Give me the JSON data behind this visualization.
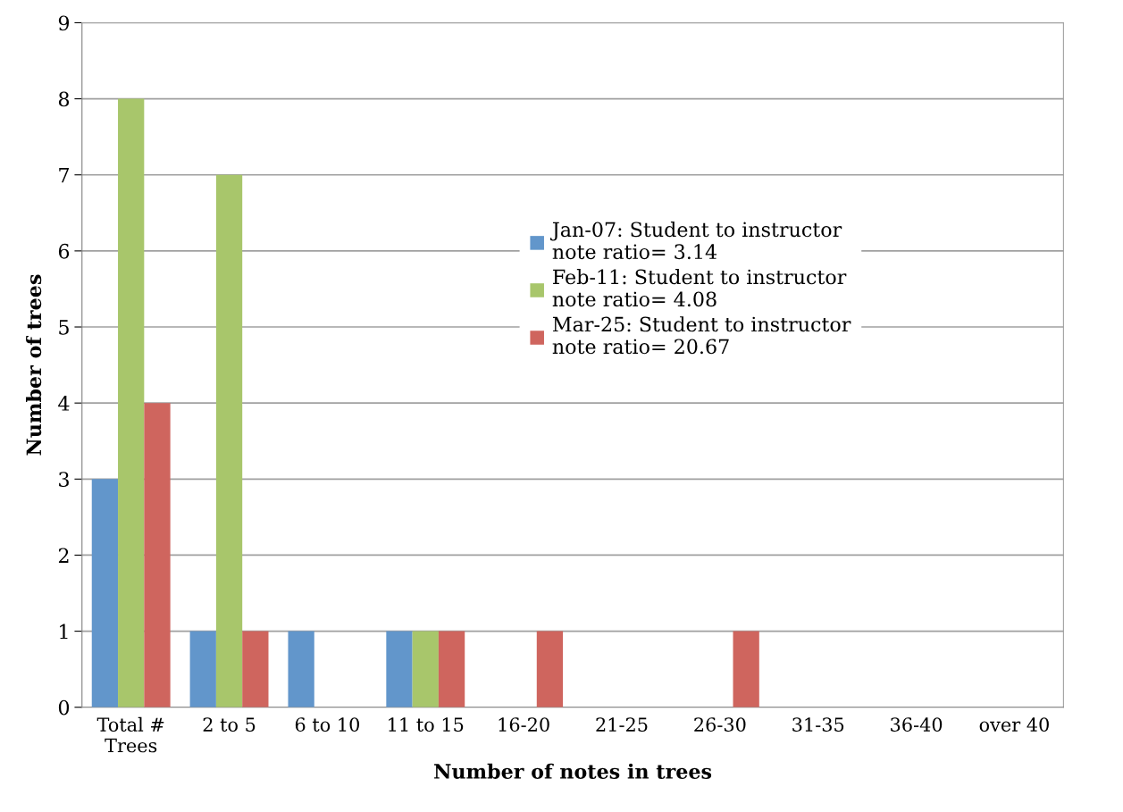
{
  "chart_data": {
    "type": "bar",
    "xlabel": "Number of notes in trees",
    "ylabel": "Number of trees",
    "categories": [
      "Total #\nTrees",
      "2 to 5",
      "6 to 10",
      "11 to 15",
      "16-20",
      "21-25",
      "26-30",
      "31-35",
      "36-40",
      "over 40"
    ],
    "series": [
      {
        "name": "Jan-07: Student to instructor\nnote ratio= 3.14",
        "color": "#6296cb",
        "values": [
          3,
          1,
          1,
          1,
          0,
          0,
          0,
          0,
          0,
          0
        ]
      },
      {
        "name": "Feb-11: Student to instructor\nnote ratio= 4.08",
        "color": "#a8c66b",
        "values": [
          8,
          7,
          0,
          1,
          0,
          0,
          0,
          0,
          0,
          0
        ]
      },
      {
        "name": "Mar-25: Student to instructor\nnote ratio= 20.67",
        "color": "#cf655e",
        "values": [
          4,
          1,
          0,
          1,
          1,
          0,
          1,
          0,
          0,
          0
        ]
      }
    ],
    "ylim": [
      0,
      9
    ],
    "yticks": [
      0,
      1,
      2,
      3,
      4,
      5,
      6,
      7,
      8,
      9
    ],
    "grid": "y",
    "legend": "center"
  }
}
